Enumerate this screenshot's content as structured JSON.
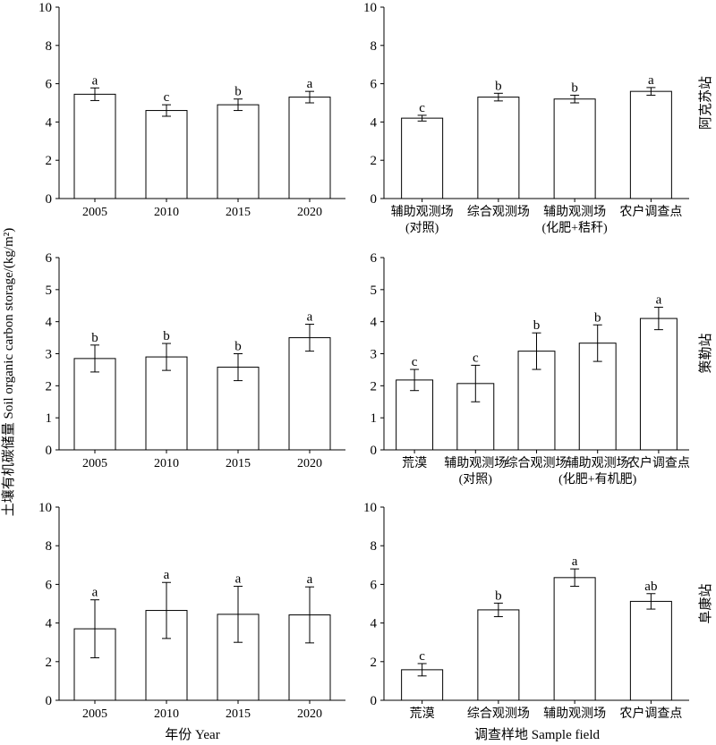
{
  "y_axis_title": "土壤有机碳储量 Soil organic carbon storage/(kg/m²)",
  "x_axis_title_left": "年份 Year",
  "x_axis_title_right": "调查样地 Sample field",
  "chart_data": [
    {
      "type": "bar",
      "station": "",
      "categories": [
        [
          "2005"
        ],
        [
          "2010"
        ],
        [
          "2015"
        ],
        [
          "2020"
        ]
      ],
      "values": [
        5.45,
        4.6,
        4.9,
        5.3
      ],
      "errors": [
        0.33,
        0.3,
        0.3,
        0.3
      ],
      "letters": [
        "a",
        "c",
        "b",
        "a"
      ],
      "ylim": [
        0,
        10
      ],
      "yticks": [
        0,
        2,
        4,
        6,
        8,
        10
      ]
    },
    {
      "type": "bar",
      "station": "阿克苏站",
      "categories": [
        [
          "辅助观测场",
          "(对照)"
        ],
        [
          "综合观测场"
        ],
        [
          "辅助观测场",
          "(化肥+秸秆)"
        ],
        [
          "农户调查点"
        ]
      ],
      "values": [
        4.2,
        5.3,
        5.2,
        5.6
      ],
      "errors": [
        0.15,
        0.2,
        0.2,
        0.2
      ],
      "letters": [
        "c",
        "b",
        "b",
        "a"
      ],
      "ylim": [
        0,
        10
      ],
      "yticks": [
        0,
        2,
        4,
        6,
        8,
        10
      ]
    },
    {
      "type": "bar",
      "station": "",
      "categories": [
        [
          "2005"
        ],
        [
          "2010"
        ],
        [
          "2015"
        ],
        [
          "2020"
        ]
      ],
      "values": [
        2.85,
        2.9,
        2.58,
        3.5
      ],
      "errors": [
        0.42,
        0.42,
        0.42,
        0.42
      ],
      "letters": [
        "b",
        "b",
        "b",
        "a"
      ],
      "ylim": [
        0,
        6
      ],
      "yticks": [
        0,
        1,
        2,
        3,
        4,
        5,
        6
      ]
    },
    {
      "type": "bar",
      "station": "策勒站",
      "categories": [
        [
          "荒漠"
        ],
        [
          "辅助观测场",
          "(对照)"
        ],
        [
          "综合观测场"
        ],
        [
          "辅助观测场",
          "(化肥+有机肥)"
        ],
        [
          "农户调查点"
        ]
      ],
      "values": [
        2.18,
        2.07,
        3.08,
        3.33,
        4.1
      ],
      "errors": [
        0.33,
        0.57,
        0.57,
        0.57,
        0.35
      ],
      "letters": [
        "c",
        "c",
        "b",
        "b",
        "a"
      ],
      "ylim": [
        0,
        6
      ],
      "yticks": [
        0,
        1,
        2,
        3,
        4,
        5,
        6
      ]
    },
    {
      "type": "bar",
      "station": "",
      "categories": [
        [
          "2005"
        ],
        [
          "2010"
        ],
        [
          "2015"
        ],
        [
          "2020"
        ]
      ],
      "values": [
        3.7,
        4.65,
        4.45,
        4.42
      ],
      "errors": [
        1.5,
        1.45,
        1.45,
        1.45
      ],
      "letters": [
        "a",
        "a",
        "a",
        "a"
      ],
      "ylim": [
        0,
        10
      ],
      "yticks": [
        0,
        2,
        4,
        6,
        8,
        10
      ]
    },
    {
      "type": "bar",
      "station": "阜康站",
      "categories": [
        [
          "荒漠"
        ],
        [
          "综合观测场"
        ],
        [
          "辅助观测场"
        ],
        [
          "农户调查点"
        ]
      ],
      "values": [
        1.58,
        4.68,
        6.35,
        5.12
      ],
      "errors": [
        0.32,
        0.35,
        0.45,
        0.4
      ],
      "letters": [
        "c",
        "b",
        "a",
        "ab"
      ],
      "ylim": [
        0,
        10
      ],
      "yticks": [
        0,
        2,
        4,
        6,
        8,
        10
      ]
    }
  ]
}
